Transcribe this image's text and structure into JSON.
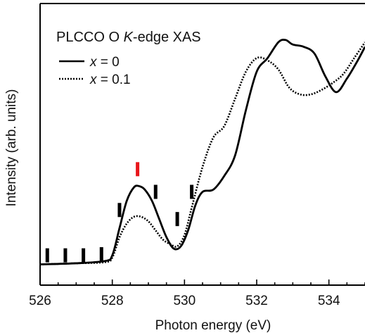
{
  "chart_data": {
    "type": "line",
    "title_prefix": "PLCCO O ",
    "title_italic": "K",
    "title_suffix": "-edge XAS",
    "xlabel": "Photon energy (eV)",
    "ylabel": "Intensity (arb. units)",
    "xlim": [
      526,
      535
    ],
    "ylim": [
      0,
      1
    ],
    "xticks": [
      526,
      528,
      530,
      532,
      534
    ],
    "xtick_labels": [
      "526",
      "528",
      "530",
      "532",
      "534"
    ],
    "yticks_shown": false,
    "grid": false,
    "legend_placement": "top-left",
    "series": [
      {
        "legend_var": "x",
        "legend_value": " = 0",
        "style": "solid",
        "color": "#000000",
        "x": [
          526.0,
          527.0,
          527.8,
          528.0,
          528.2,
          528.4,
          528.6,
          528.75,
          528.9,
          529.1,
          529.3,
          529.5,
          529.7,
          529.9,
          530.1,
          530.3,
          530.5,
          530.8,
          531.1,
          531.4,
          531.7,
          532.0,
          532.3,
          532.6,
          532.8,
          533.0,
          533.3,
          533.6,
          533.9,
          534.2,
          534.5,
          534.8,
          535.0
        ],
        "y": [
          0.02,
          0.025,
          0.035,
          0.06,
          0.18,
          0.3,
          0.36,
          0.365,
          0.35,
          0.3,
          0.22,
          0.14,
          0.09,
          0.1,
          0.17,
          0.28,
          0.34,
          0.35,
          0.41,
          0.5,
          0.7,
          0.87,
          0.93,
          1.0,
          1.01,
          0.99,
          0.98,
          0.95,
          0.85,
          0.78,
          0.84,
          0.92,
          0.98
        ]
      },
      {
        "legend_var": "x",
        "legend_value": " = 0.1",
        "style": "dotted",
        "color": "#000000",
        "x": [
          526.0,
          527.0,
          527.8,
          528.0,
          528.2,
          528.4,
          528.6,
          528.8,
          529.0,
          529.2,
          529.4,
          529.6,
          529.8,
          530.0,
          530.2,
          530.5,
          530.8,
          531.1,
          531.4,
          531.7,
          532.0,
          532.3,
          532.6,
          532.9,
          533.2,
          533.5,
          533.8,
          534.1,
          534.4,
          534.7,
          535.0
        ],
        "y": [
          0.02,
          0.025,
          0.03,
          0.05,
          0.14,
          0.2,
          0.23,
          0.23,
          0.21,
          0.17,
          0.13,
          0.11,
          0.1,
          0.15,
          0.27,
          0.45,
          0.58,
          0.63,
          0.75,
          0.87,
          0.93,
          0.92,
          0.88,
          0.8,
          0.77,
          0.77,
          0.79,
          0.82,
          0.86,
          0.93,
          1.0
        ]
      }
    ],
    "markers": [
      {
        "x": 526.2,
        "y": 0.06,
        "color": "#000000"
      },
      {
        "x": 526.7,
        "y": 0.06,
        "color": "#000000"
      },
      {
        "x": 527.2,
        "y": 0.06,
        "color": "#000000"
      },
      {
        "x": 527.7,
        "y": 0.065,
        "color": "#000000"
      },
      {
        "x": 528.2,
        "y": 0.26,
        "color": "#000000"
      },
      {
        "x": 528.7,
        "y": 0.44,
        "color": "#e8161b"
      },
      {
        "x": 529.2,
        "y": 0.34,
        "color": "#000000"
      },
      {
        "x": 529.8,
        "y": 0.22,
        "color": "#000000"
      },
      {
        "x": 530.2,
        "y": 0.34,
        "color": "#000000"
      }
    ]
  }
}
